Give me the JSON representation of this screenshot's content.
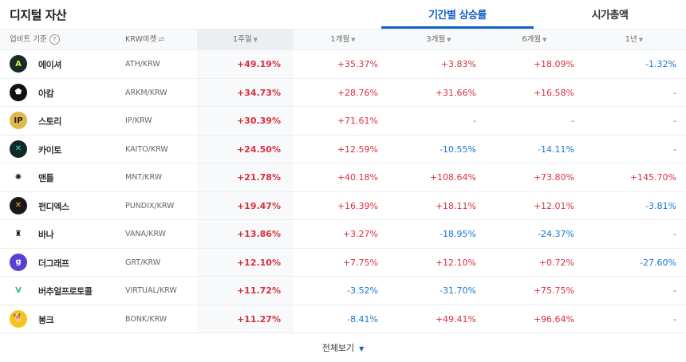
{
  "header": {
    "title": "디지털 자산",
    "tabs": [
      {
        "label": "기간별 상승률",
        "active": true
      },
      {
        "label": "시가총액",
        "active": false
      }
    ]
  },
  "table": {
    "columns": {
      "basis": "업비트 기준",
      "help": "?",
      "market": "KRW마켓",
      "market_icon": "⇄",
      "w1": "1주일",
      "m1": "1개월",
      "m3": "3개월",
      "m6": "6개월",
      "y1": "1년",
      "sort_icon": "▼"
    },
    "rows": [
      {
        "name": "에이셔",
        "pair": "ATH/KRW",
        "w1": "+49.19%",
        "m1": "+35.37%",
        "m3": "+3.83%",
        "m6": "+18.09%",
        "y1": "-1.32%",
        "logo": {
          "text": "A",
          "bg": "#1b2a26",
          "fg": "#c9f23b"
        }
      },
      {
        "name": "아캄",
        "pair": "ARKM/KRW",
        "w1": "+34.73%",
        "m1": "+28.76%",
        "m3": "+31.66%",
        "m6": "+16.58%",
        "y1": "-",
        "logo": {
          "text": "⬟",
          "bg": "#111111",
          "fg": "#ffffff"
        }
      },
      {
        "name": "스토리",
        "pair": "IP/KRW",
        "w1": "+30.39%",
        "m1": "+71.61%",
        "m3": "-",
        "m6": "-",
        "y1": "-",
        "logo": {
          "text": "IP",
          "bg": "#e0b84a",
          "fg": "#1a1a1a"
        }
      },
      {
        "name": "카이토",
        "pair": "KAITO/KRW",
        "w1": "+24.50%",
        "m1": "+12.59%",
        "m3": "-10.55%",
        "m6": "-14.11%",
        "y1": "-",
        "logo": {
          "text": "✕",
          "bg": "#0e2b2a",
          "fg": "#3fe0c8"
        }
      },
      {
        "name": "맨틀",
        "pair": "MNT/KRW",
        "w1": "+21.78%",
        "m1": "+40.18%",
        "m3": "+108.64%",
        "m6": "+73.80%",
        "y1": "+145.70%",
        "logo": {
          "text": "✺",
          "bg": "#ffffff",
          "fg": "#111111"
        }
      },
      {
        "name": "펀디엑스",
        "pair": "PUNDIX/KRW",
        "w1": "+19.47%",
        "m1": "+16.39%",
        "m3": "+18.11%",
        "m6": "+12.01%",
        "y1": "-3.81%",
        "logo": {
          "text": "✕",
          "bg": "#1a1a1a",
          "fg": "#e8b923"
        }
      },
      {
        "name": "바나",
        "pair": "VANA/KRW",
        "w1": "+13.86%",
        "m1": "+3.27%",
        "m3": "-18.95%",
        "m6": "-24.37%",
        "y1": "-",
        "logo": {
          "text": "♜",
          "bg": "#ffffff",
          "fg": "#111111"
        }
      },
      {
        "name": "더그래프",
        "pair": "GRT/KRW",
        "w1": "+12.10%",
        "m1": "+7.75%",
        "m3": "+12.10%",
        "m6": "+0.72%",
        "y1": "-27.60%",
        "logo": {
          "text": "g",
          "bg": "#5a3fd6",
          "fg": "#ffffff"
        }
      },
      {
        "name": "버추얼프로토콜",
        "pair": "VIRTUAL/KRW",
        "w1": "+11.72%",
        "m1": "-3.52%",
        "m3": "-31.70%",
        "m6": "+75.75%",
        "y1": "-",
        "logo": {
          "text": "V",
          "bg": "#ffffff",
          "fg": "#36b3a8"
        }
      },
      {
        "name": "봉크",
        "pair": "BONK/KRW",
        "w1": "+11.27%",
        "m1": "-8.41%",
        "m3": "+49.41%",
        "m6": "+96.64%",
        "y1": "-",
        "logo": {
          "text": "🐕",
          "bg": "#f5c518",
          "fg": "#b35a1f"
        }
      }
    ]
  },
  "footer": {
    "more_label": "전체보기",
    "more_icon": "▼"
  },
  "colors": {
    "accent": "#1261c4",
    "up": "#d9303f",
    "down": "#1776d2"
  }
}
